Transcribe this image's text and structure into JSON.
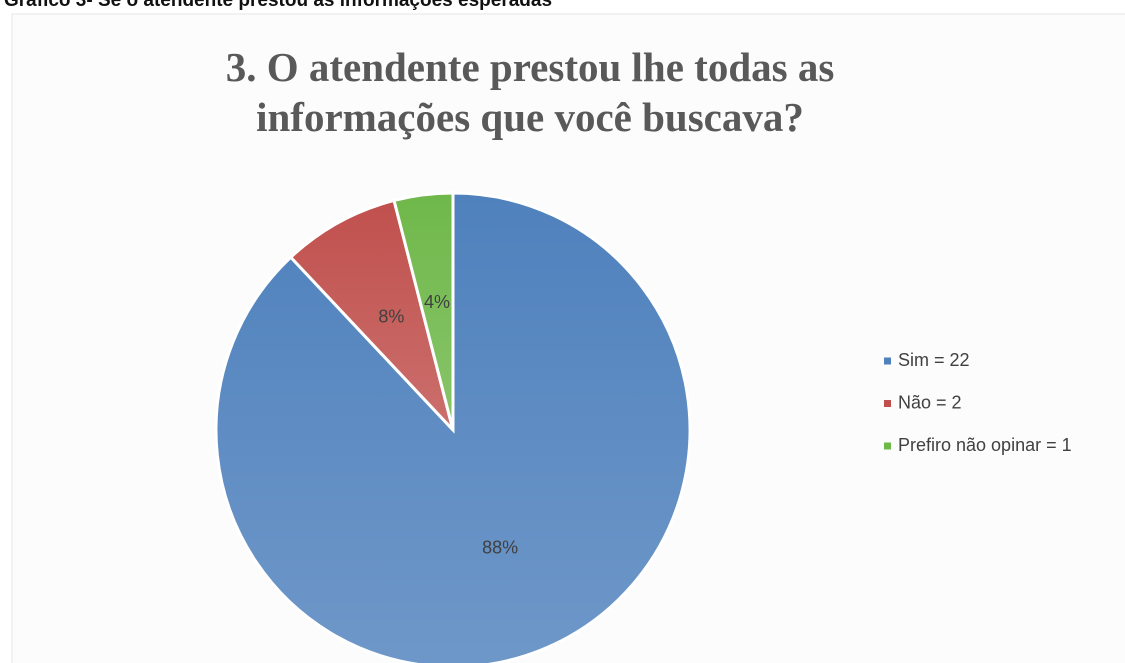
{
  "caption": "Gráfico 3- Se o atendente prestou as informações esperadas",
  "chart_data": {
    "type": "pie",
    "title": "3. O atendente prestou lhe todas as informações que você buscava?",
    "categories": [
      "Sim = 22",
      "Não = 2",
      "Prefiro não opinar = 1"
    ],
    "values": [
      88,
      8,
      4
    ],
    "value_labels": [
      "88%",
      "8%",
      "4%"
    ],
    "colors": [
      "#4f81bd",
      "#c0504d",
      "#6fb84a"
    ],
    "legend": "right"
  }
}
